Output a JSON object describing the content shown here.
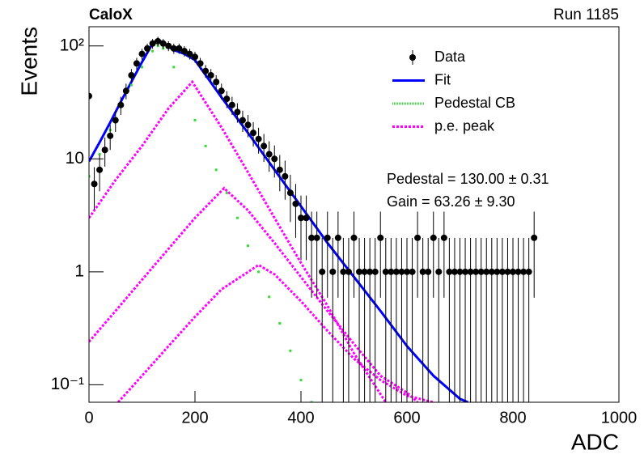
{
  "chart_data": {
    "type": "scatter",
    "title": "CaloX",
    "subtitle": "Run 1185",
    "x_label": "ADC",
    "y_label": "Events",
    "log_y": true,
    "legend_position": "upper-right",
    "annotations": [
      "Pedestal = 130.00 ± 0.31",
      "Gain = 63.26 ± 9.30"
    ],
    "xlim": [
      0,
      1000
    ],
    "xticks": [
      0,
      200,
      400,
      600,
      800,
      1000
    ],
    "ylim": [
      0.07,
      148
    ],
    "yticks": [
      {
        "value": 0.1,
        "label": "10⁻¹"
      },
      1,
      10,
      {
        "value": 100,
        "label": "10²"
      }
    ],
    "series": [
      {
        "name": "Data",
        "marker": "points-errorbars",
        "color": "#000000",
        "x": [
          0,
          10,
          20,
          30,
          40,
          50,
          60,
          70,
          80,
          90,
          100,
          110,
          120,
          130,
          140,
          150,
          160,
          170,
          180,
          190,
          200,
          210,
          220,
          230,
          240,
          250,
          260,
          270,
          280,
          290,
          300,
          310,
          320,
          330,
          340,
          350,
          360,
          370,
          380,
          390,
          400,
          410,
          420,
          430,
          440,
          450,
          460,
          470,
          480,
          490,
          500,
          510,
          520,
          530,
          540,
          550,
          560,
          570,
          580,
          590,
          600,
          610,
          620,
          630,
          640,
          650,
          660,
          670,
          680,
          690,
          700,
          710,
          720,
          730,
          740,
          750,
          760,
          770,
          780,
          790,
          800,
          810,
          820,
          830,
          840
        ],
        "values": [
          36,
          6,
          8,
          12,
          16,
          22,
          30,
          40,
          55,
          70,
          85,
          95,
          105,
          110,
          105,
          100,
          95,
          95,
          90,
          85,
          80,
          70,
          60,
          55,
          48,
          40,
          34,
          30,
          26,
          22,
          20,
          17,
          15,
          13,
          11,
          10,
          8,
          7,
          5,
          4,
          3,
          3,
          2,
          2,
          1,
          2,
          1,
          2,
          1,
          1,
          2,
          1,
          1,
          1,
          1,
          2,
          1,
          1,
          1,
          1,
          1,
          1,
          2,
          1,
          1,
          2,
          1,
          2,
          1,
          1,
          1,
          1,
          1,
          1,
          1,
          1,
          1,
          1,
          1,
          1,
          1,
          1,
          1,
          1,
          2
        ],
        "errors": [
          6,
          2.45,
          2.83,
          3.46,
          4,
          4.69,
          5.48,
          6.32,
          7.42,
          8.37,
          9.22,
          9.75,
          10.25,
          10.49,
          10.25,
          10,
          9.75,
          9.75,
          9.49,
          9.22,
          8.94,
          8.37,
          7.75,
          7.42,
          6.93,
          6.32,
          5.83,
          5.48,
          5.1,
          4.69,
          4.47,
          4.12,
          3.87,
          3.61,
          3.32,
          3.16,
          2.83,
          2.65,
          2.24,
          2,
          1.73,
          1.73,
          1.41,
          1.41,
          1,
          1.41,
          1,
          1.41,
          1,
          1,
          1.41,
          1,
          1,
          1,
          1,
          1.41,
          1,
          1,
          1,
          1,
          1,
          1,
          1.41,
          1,
          1,
          1.41,
          1,
          1.41,
          1,
          1,
          1,
          1,
          1,
          1,
          1,
          1,
          1,
          1,
          1,
          1,
          1,
          1,
          1,
          1,
          1.41
        ]
      },
      {
        "name": "Fit",
        "marker": "line",
        "color": "#0000ff",
        "x": [
          0,
          20,
          40,
          60,
          80,
          100,
          120,
          130,
          140,
          160,
          180,
          200,
          250,
          300,
          350,
          400,
          450,
          500,
          550,
          600,
          650,
          700,
          715
        ],
        "values": [
          9.5,
          14,
          21,
          32,
          48,
          72,
          105,
          115,
          105,
          92,
          85,
          75,
          35,
          17,
          8,
          3.8,
          1.8,
          0.9,
          0.45,
          0.22,
          0.12,
          0.075,
          0.07
        ]
      },
      {
        "name": "Pedestal CB",
        "marker": "dots",
        "color": "#33dd33",
        "x": [
          0,
          20,
          40,
          60,
          80,
          100,
          120,
          130,
          140,
          160,
          180,
          200,
          220,
          240,
          260,
          280,
          300,
          320,
          340,
          360,
          380,
          400,
          420
        ],
        "values": [
          7,
          11,
          18,
          30,
          45,
          65,
          90,
          100,
          95,
          65,
          40,
          22,
          13,
          8,
          5,
          3,
          1.7,
          1,
          0.6,
          0.35,
          0.2,
          0.11,
          0.07
        ]
      },
      {
        "name": "p.e. peak",
        "marker": "dashed",
        "color": "#ff00ff",
        "x": [
          0,
          50,
          100,
          150,
          195,
          250,
          300,
          350,
          400,
          450,
          500,
          560,
          null,
          0,
          50,
          100,
          150,
          200,
          255,
          300,
          350,
          400,
          450,
          500,
          550,
          600,
          620,
          null,
          55,
          100,
          150,
          200,
          250,
          320,
          350,
          400,
          450,
          500,
          550,
          600,
          650
        ],
        "values": [
          3,
          6.5,
          13,
          28,
          48,
          19,
          7.6,
          3,
          1.2,
          0.5,
          0.19,
          0.07,
          null,
          0.24,
          0.45,
          0.85,
          1.6,
          3,
          5.5,
          3.5,
          1.8,
          0.9,
          0.45,
          0.23,
          0.12,
          0.085,
          0.07,
          null,
          0.07,
          0.12,
          0.22,
          0.4,
          0.7,
          1.15,
          0.95,
          0.55,
          0.3,
          0.17,
          0.11,
          0.08,
          0.07
        ]
      }
    ]
  }
}
